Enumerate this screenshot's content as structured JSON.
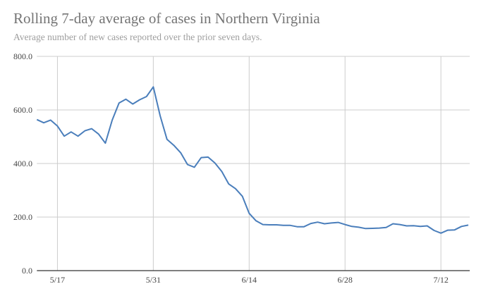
{
  "chart_data": {
    "type": "line",
    "title": "Rolling 7-day average of cases in Northern Virginia",
    "subtitle": "Average number of new cases reported over the prior seven days.",
    "xlabel": "",
    "ylabel": "",
    "ylim": [
      0,
      800
    ],
    "yticks": [
      "0.0",
      "200.0",
      "400.0",
      "600.0",
      "800.0"
    ],
    "xticks": [
      "5/17",
      "5/31",
      "6/14",
      "6/28",
      "7/12"
    ],
    "grid": true,
    "legend": "none",
    "line_color": "#4a7ebb",
    "x": [
      "5/14",
      "5/15",
      "5/16",
      "5/17",
      "5/18",
      "5/19",
      "5/20",
      "5/21",
      "5/22",
      "5/23",
      "5/24",
      "5/25",
      "5/26",
      "5/27",
      "5/28",
      "5/29",
      "5/30",
      "5/31",
      "6/1",
      "6/2",
      "6/3",
      "6/4",
      "6/5",
      "6/6",
      "6/7",
      "6/8",
      "6/9",
      "6/10",
      "6/11",
      "6/12",
      "6/13",
      "6/14",
      "6/15",
      "6/16",
      "6/17",
      "6/18",
      "6/19",
      "6/20",
      "6/21",
      "6/22",
      "6/23",
      "6/24",
      "6/25",
      "6/26",
      "6/27",
      "6/28",
      "6/29",
      "6/30",
      "7/1",
      "7/2",
      "7/3",
      "7/4",
      "7/5",
      "7/6",
      "7/7",
      "7/8",
      "7/9",
      "7/10",
      "7/11",
      "7/12",
      "7/13",
      "7/14",
      "7/15",
      "7/16"
    ],
    "series": [
      {
        "values": [
          564,
          552,
          562,
          540,
          502,
          518,
          502,
          522,
          530,
          510,
          476,
          562,
          626,
          640,
          622,
          638,
          650,
          686,
          578,
          490,
          468,
          440,
          396,
          386,
          422,
          424,
          402,
          370,
          324,
          306,
          278,
          214,
          186,
          172,
          171,
          171,
          169,
          169,
          164,
          164,
          176,
          181,
          175,
          178,
          180,
          172,
          165,
          162,
          157,
          158,
          159,
          161,
          175,
          172,
          167,
          168,
          165,
          167,
          150,
          140,
          151,
          152,
          165,
          170
        ]
      }
    ]
  }
}
